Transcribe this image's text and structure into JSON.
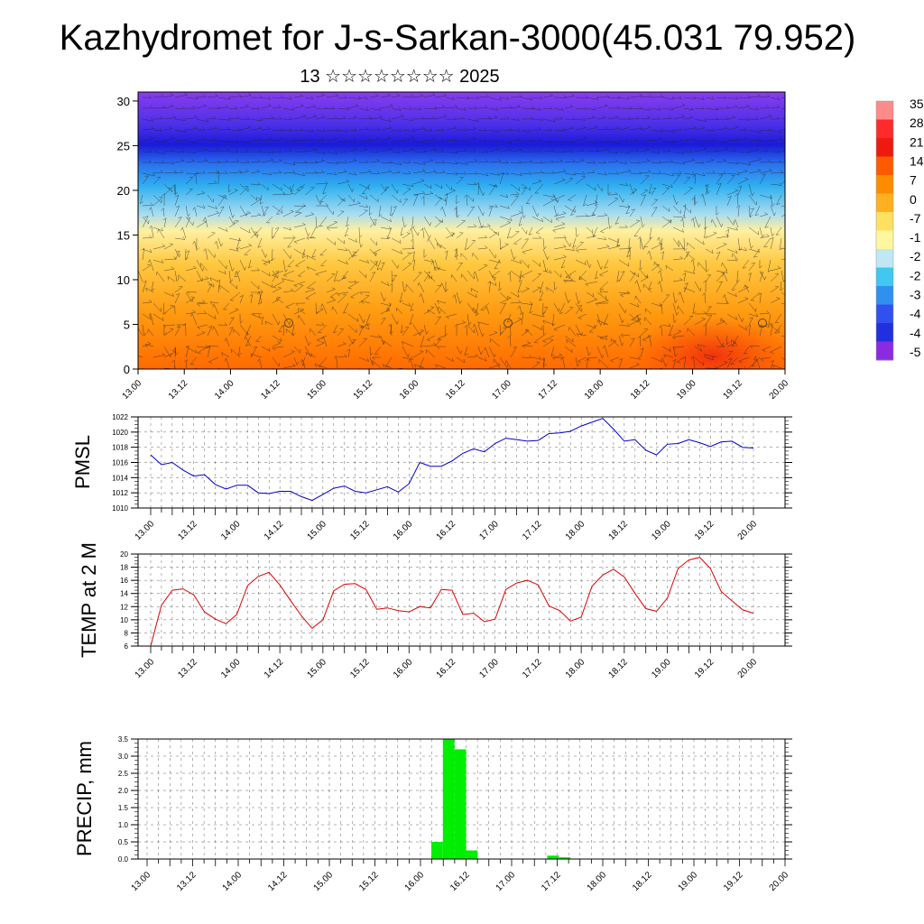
{
  "title": "Kazhydromet for J-s-Sarkan-3000(45.031 79.952)",
  "subtitle": "13 ☆☆☆☆☆☆☆☆ 2025",
  "time_labels": [
    "13.00",
    "13.12",
    "14.00",
    "14.12",
    "15.00",
    "15.12",
    "16.00",
    "16.12",
    "17.00",
    "17.12",
    "18.00",
    "18.12",
    "19.00",
    "19.12",
    "20.00"
  ],
  "chart_data": [
    {
      "type": "heatmap",
      "name": "vertical-section",
      "y_range": [
        0,
        31
      ],
      "y_ticks": [
        0,
        5,
        10,
        15,
        20,
        25,
        30
      ],
      "colorbar_labels": [
        "35",
        "28",
        "21",
        "14",
        "7",
        "0",
        "-7",
        "-1",
        "-2",
        "-2",
        "-3",
        "-4",
        "-4",
        "-5"
      ],
      "colorbar_colors": [
        "#ff8a8a",
        "#ff2a2a",
        "#ee1a10",
        "#ff5a00",
        "#ff8c00",
        "#ffb020",
        "#ffe060",
        "#fff6a0",
        "#c0e8f4",
        "#40c8f0",
        "#3090f0",
        "#3050f0",
        "#2030e0",
        "#8a2be2"
      ]
    },
    {
      "type": "line",
      "name": "pmsl",
      "ylabel": "PMSL",
      "ylim": [
        1010,
        1022
      ],
      "y_ticks": [
        "1010",
        "1012",
        "1014",
        "1016",
        "1018",
        "1020",
        "1022"
      ],
      "color": "#0000cc",
      "values": [
        1017.0,
        1015.7,
        1016.0,
        1015.0,
        1014.2,
        1014.4,
        1013.1,
        1012.5,
        1013.0,
        1013.0,
        1012.0,
        1011.9,
        1012.2,
        1012.2,
        1011.5,
        1011.0,
        1011.8,
        1012.6,
        1012.9,
        1012.2,
        1012.0,
        1012.4,
        1012.8,
        1012.1,
        1013.2,
        1016.0,
        1015.5,
        1015.5,
        1016.2,
        1017.2,
        1017.8,
        1017.4,
        1018.5,
        1019.2,
        1019.0,
        1018.8,
        1018.9,
        1019.8,
        1019.9,
        1020.1,
        1020.8,
        1021.3,
        1021.8,
        1020.4,
        1018.8,
        1019.0,
        1017.6,
        1017.0,
        1018.4,
        1018.5,
        1019.0,
        1018.6,
        1018.1,
        1018.7,
        1018.8,
        1018.0,
        1017.9
      ]
    },
    {
      "type": "line",
      "name": "temp2m",
      "ylabel": "TEMP at 2 M",
      "ylim": [
        6,
        20
      ],
      "y_ticks": [
        "6",
        "8",
        "10",
        "12",
        "14",
        "16",
        "18",
        "20"
      ],
      "color": "#dd0000",
      "values": [
        6.0,
        12.2,
        14.5,
        14.7,
        13.8,
        11.2,
        10.1,
        9.4,
        10.8,
        15.2,
        16.6,
        17.2,
        15.3,
        12.9,
        10.6,
        8.7,
        10.0,
        14.4,
        15.4,
        15.5,
        14.6,
        11.6,
        11.8,
        11.4,
        11.2,
        12.0,
        11.8,
        14.6,
        14.5,
        10.8,
        11.0,
        9.7,
        10.1,
        14.6,
        15.6,
        16.0,
        15.3,
        12.1,
        11.4,
        9.8,
        10.4,
        15.1,
        16.8,
        17.7,
        16.5,
        14.0,
        11.7,
        11.3,
        13.3,
        17.8,
        19.1,
        19.5,
        17.8,
        14.3,
        12.9,
        11.5,
        11.0
      ]
    },
    {
      "type": "bar",
      "name": "precip",
      "ylabel": "PRECIP, mm",
      "ylim": [
        0,
        3.5
      ],
      "y_ticks": [
        "0.0",
        "0.5",
        "1.0",
        "1.5",
        "2.0",
        "2.5",
        "3.0",
        "3.5"
      ],
      "color": "#00ee00",
      "values": [
        0,
        0,
        0,
        0,
        0,
        0,
        0,
        0,
        0,
        0,
        0,
        0,
        0,
        0,
        0,
        0,
        0,
        0,
        0,
        0,
        0,
        0,
        0,
        0,
        0,
        0.5,
        3.5,
        3.2,
        0.25,
        0,
        0,
        0,
        0,
        0,
        0,
        0.1,
        0.05,
        0,
        0,
        0,
        0,
        0,
        0,
        0,
        0,
        0,
        0,
        0,
        0,
        0,
        0,
        0,
        0,
        0,
        0,
        0
      ]
    }
  ]
}
